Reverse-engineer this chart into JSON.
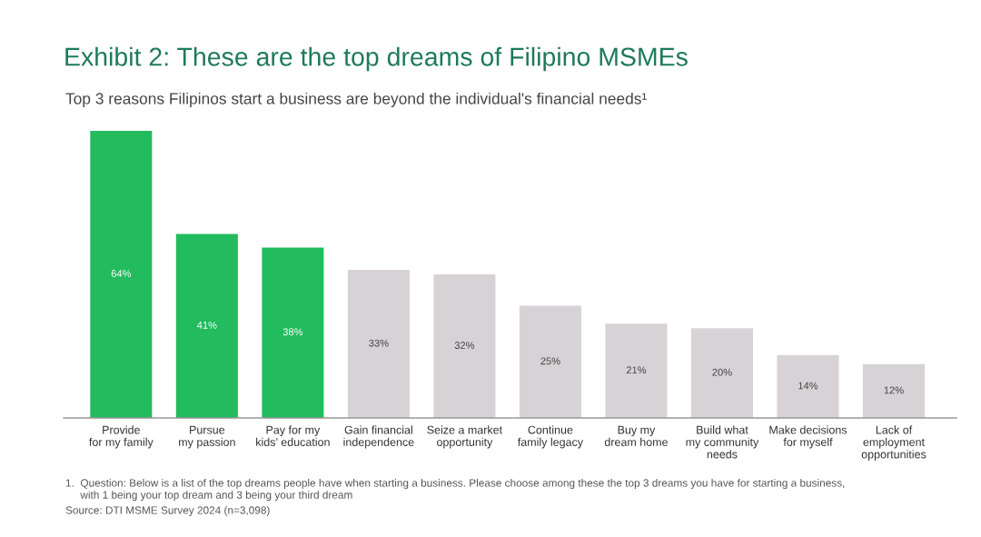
{
  "chart_data": {
    "type": "bar",
    "title": "Exhibit 2: These are the top dreams of Filipino MSMEs",
    "subtitle": "Top 3 reasons Filipinos start a business are beyond the individual's financial needs¹",
    "categories": [
      "Provide\nfor my family",
      "Pursue\nmy passion",
      "Pay for my\nkids’ education",
      "Gain financial\nindependence",
      "Seize a market\nopportunity",
      "Continue\nfamily legacy",
      "Buy my\ndream home",
      "Build what\nmy community\nneeds",
      "Make decisions\nfor myself",
      "Lack of\nemployment\nopportunities"
    ],
    "values": [
      64,
      41,
      38,
      33,
      32,
      25,
      21,
      20,
      14,
      12
    ],
    "colors": [
      "#22bb5e",
      "#22bb5e",
      "#22bb5e",
      "#d6d2d5",
      "#d6d2d5",
      "#d6d2d5",
      "#d6d2d5",
      "#d6d2d5",
      "#d6d2d5",
      "#d6d2d5"
    ],
    "value_labels": [
      "64%",
      "41%",
      "38%",
      "33%",
      "32%",
      "25%",
      "21%",
      "20%",
      "14%",
      "12%"
    ],
    "annotations": [
      "1.  Question: Below is a list of the top dreams people have when starting a business. Please choose among these the top 3 dreams you have for starting a business,\n     with 1 being your top dream and 3 being your third dream",
      "Source: DTI MSME Survey 2024 (n=3,098)"
    ]
  }
}
